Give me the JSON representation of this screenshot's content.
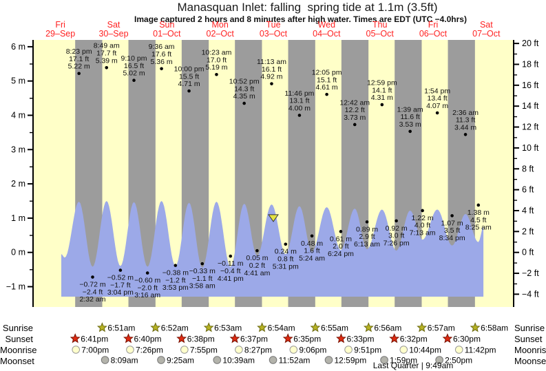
{
  "title": "Manasquan Inlet: falling  spring tide at 1.1m (3.5ft)",
  "subtitle": "Image captured 2 hours and 8 minutes after high water. Times are EDT (UTC −4.0hrs)",
  "days": [
    {
      "weekday": "Fri",
      "date": "29–Sep"
    },
    {
      "weekday": "Sat",
      "date": "30–Sep"
    },
    {
      "weekday": "Sun",
      "date": "01–Oct"
    },
    {
      "weekday": "Mon",
      "date": "02–Oct"
    },
    {
      "weekday": "Tue",
      "date": "03–Oct"
    },
    {
      "weekday": "Wed",
      "date": "04–Oct"
    },
    {
      "weekday": "Thu",
      "date": "05–Oct"
    },
    {
      "weekday": "Fri",
      "date": "06–Oct"
    },
    {
      "weekday": "Sat",
      "date": "07–Oct"
    }
  ],
  "chart_data": {
    "type": "area",
    "title": "Manasquan Inlet tide curve",
    "ylabel_left": "m",
    "ylabel_right": "ft",
    "y_axis_left": {
      "min": -1,
      "max": 6,
      "major_step": 1,
      "labels": [
        "6 m",
        "5 m",
        "4 m",
        "3 m",
        "2 m",
        "1 m",
        "0 m",
        "−1 m"
      ]
    },
    "y_axis_right": {
      "min": -4,
      "max": 20,
      "major_step": 2,
      "labels": [
        "20 ft",
        "18 ft",
        "16 ft",
        "14 ft",
        "12 ft",
        "10 ft",
        "8 ft",
        "6 ft",
        "4 ft",
        "2 ft",
        "0 ft",
        "−2 ft",
        "−4 ft"
      ]
    },
    "sun_cycle": {
      "sunrise_h": 6.88,
      "sunset_h": 18.68
    },
    "high_tides": [
      {
        "day": 0,
        "time": "8:23 pm",
        "height_ft": "17.1 ft",
        "height_m": "5.22 m",
        "value_m": 5.22
      },
      {
        "day": 1,
        "time": "8:49 am",
        "height_ft": "17.7 ft",
        "height_m": "5.39 m",
        "value_m": 5.39
      },
      {
        "day": 1,
        "time": "9:10 pm",
        "height_ft": "16.5 ft",
        "height_m": "5.02 m",
        "value_m": 5.02
      },
      {
        "day": 2,
        "time": "9:36 am",
        "height_ft": "17.6 ft",
        "height_m": "5.36 m",
        "value_m": 5.36
      },
      {
        "day": 2,
        "time": "10:00 pm",
        "height_ft": "15.5 ft",
        "height_m": "4.71 m",
        "value_m": 4.71
      },
      {
        "day": 3,
        "time": "10:23 am",
        "height_ft": "17.0 ft",
        "height_m": "5.19 m",
        "value_m": 5.19
      },
      {
        "day": 3,
        "time": "10:52 pm",
        "height_ft": "14.3 ft",
        "height_m": "4.35 m",
        "value_m": 4.35
      },
      {
        "day": 4,
        "time": "11:13 am",
        "height_ft": "16.1 ft",
        "height_m": "4.92 m",
        "value_m": 4.92
      },
      {
        "day": 4,
        "time": "11:46 pm",
        "height_ft": "13.1 ft",
        "height_m": "4.00 m",
        "value_m": 4.0
      },
      {
        "day": 5,
        "time": "12:05 pm",
        "height_ft": "15.1 ft",
        "height_m": "4.61 m",
        "value_m": 4.61
      },
      {
        "day": 6,
        "time": "12:42 am",
        "height_ft": "12.2 ft",
        "height_m": "3.73 m",
        "value_m": 3.73
      },
      {
        "day": 6,
        "time": "12:59 pm",
        "height_ft": "14.1 ft",
        "height_m": "4.31 m",
        "value_m": 4.31
      },
      {
        "day": 7,
        "time": "1:39 am",
        "height_ft": "11.6 ft",
        "height_m": "3.53 m",
        "value_m": 3.53
      },
      {
        "day": 7,
        "time": "1:54 pm",
        "height_ft": "13.4 ft",
        "height_m": "4.07 m",
        "value_m": 4.07
      },
      {
        "day": 8,
        "time": "2:36 am",
        "height_ft": "11.3 ft",
        "height_m": "3.44 m",
        "value_m": 3.44
      }
    ],
    "low_tides": [
      {
        "day": 1,
        "time": "2:32 am",
        "height_ft": "−2.4 ft",
        "height_m": "−0.72 m",
        "value_m": -0.72
      },
      {
        "day": 1,
        "time": "3:04 pm",
        "height_ft": "−1.7 ft",
        "height_m": "−0.52 m",
        "value_m": -0.52
      },
      {
        "day": 2,
        "time": "3:16 am",
        "height_ft": "−2.0 ft",
        "height_m": "−0.60 m",
        "value_m": -0.6
      },
      {
        "day": 2,
        "time": "3:53 pm",
        "height_ft": "−1.2 ft",
        "height_m": "−0.38 m",
        "value_m": -0.38
      },
      {
        "day": 3,
        "time": "3:58 am",
        "height_ft": "−1.1 ft",
        "height_m": "−0.33 m",
        "value_m": -0.33
      },
      {
        "day": 3,
        "time": "4:41 pm",
        "height_ft": "−0.4 ft",
        "height_m": "−0.11 m",
        "value_m": -0.11
      },
      {
        "day": 4,
        "time": "4:41 am",
        "height_ft": "0.2 ft",
        "height_m": "0.05 m",
        "value_m": 0.05
      },
      {
        "day": 4,
        "time": "5:31 pm",
        "height_ft": "0.8 ft",
        "height_m": "0.24 m",
        "value_m": 0.24
      },
      {
        "day": 5,
        "time": "5:24 am",
        "height_ft": "1.6 ft",
        "height_m": "0.48 m",
        "value_m": 0.48
      },
      {
        "day": 5,
        "time": "6:24 pm",
        "height_ft": "2.0 ft",
        "height_m": "0.61 m",
        "value_m": 0.61
      },
      {
        "day": 6,
        "time": "6:13 am",
        "height_ft": "2.9 ft",
        "height_m": "0.89 m",
        "value_m": 0.89
      },
      {
        "day": 6,
        "time": "7:26 pm",
        "height_ft": "3.0 ft",
        "height_m": "0.92 m",
        "value_m": 0.92
      },
      {
        "day": 7,
        "time": "7:13 am",
        "height_ft": "4.0 ft",
        "height_m": "1.22 m",
        "value_m": 1.22
      },
      {
        "day": 7,
        "time": "8:34 pm",
        "height_ft": "3.5 ft",
        "height_m": "1.07 m",
        "value_m": 1.07
      },
      {
        "day": 8,
        "time": "8:25 am",
        "height_ft": "4.5 ft",
        "height_m": "1.38 m",
        "value_m": 1.38
      }
    ],
    "current_marker": {
      "shape": "triangle-down",
      "x_hour": 108.0,
      "level_m": 1.0
    },
    "curve_profile": {
      "start_h": 12.4,
      "end_h": 202.7,
      "base_level_m": -1.3,
      "extremes": [
        [
          12.4,
          -0.05
        ],
        [
          13.97,
          -0.15
        ],
        [
          20.38,
          1.48
        ],
        [
          26.53,
          -0.42
        ],
        [
          32.82,
          1.5
        ],
        [
          39.07,
          -0.4
        ],
        [
          45.17,
          1.47
        ],
        [
          51.27,
          -0.42
        ],
        [
          57.6,
          1.5
        ],
        [
          63.88,
          -0.4
        ],
        [
          70.0,
          1.45
        ],
        [
          75.97,
          -0.45
        ],
        [
          82.38,
          1.48
        ],
        [
          88.68,
          -0.42
        ],
        [
          94.87,
          1.42
        ],
        [
          100.68,
          -0.1
        ],
        [
          107.22,
          1.4
        ],
        [
          113.52,
          -0.05
        ],
        [
          119.77,
          1.35
        ],
        [
          125.4,
          0.02
        ],
        [
          132.08,
          1.32
        ],
        [
          138.4,
          0.07
        ],
        [
          144.7,
          1.28
        ],
        [
          150.22,
          0.09
        ],
        [
          156.98,
          1.25
        ],
        [
          163.43,
          0.05
        ],
        [
          169.65,
          1.22
        ],
        [
          175.22,
          0.37
        ],
        [
          181.9,
          1.25
        ],
        [
          188.57,
          0.2
        ],
        [
          194.6,
          1.12
        ],
        [
          200.42,
          0.3
        ],
        [
          202.7,
          0.75
        ]
      ]
    }
  },
  "astro": {
    "rows": [
      {
        "label": "Sunrise",
        "icon": "sunrise-star-icon",
        "entries": [
          {
            "day": 1,
            "time": "6:51am"
          },
          {
            "day": 2,
            "time": "6:52am"
          },
          {
            "day": 3,
            "time": "6:53am"
          },
          {
            "day": 4,
            "time": "6:54am"
          },
          {
            "day": 5,
            "time": "6:55am"
          },
          {
            "day": 6,
            "time": "6:56am"
          },
          {
            "day": 7,
            "time": "6:57am"
          },
          {
            "day": 8,
            "time": "6:58am"
          }
        ]
      },
      {
        "label": "Sunset",
        "icon": "sunset-star-icon",
        "entries": [
          {
            "day": 0,
            "time": "6:41pm"
          },
          {
            "day": 1,
            "time": "6:40pm"
          },
          {
            "day": 2,
            "time": "6:38pm"
          },
          {
            "day": 3,
            "time": "6:37pm"
          },
          {
            "day": 4,
            "time": "6:35pm"
          },
          {
            "day": 5,
            "time": "6:33pm"
          },
          {
            "day": 6,
            "time": "6:32pm"
          },
          {
            "day": 7,
            "time": "6:30pm"
          }
        ]
      },
      {
        "label": "Moonrise",
        "icon": "moonrise-circle-icon",
        "entries": [
          {
            "day": 0,
            "time": "7:00pm"
          },
          {
            "day": 1,
            "time": "7:26pm"
          },
          {
            "day": 2,
            "time": "7:55pm"
          },
          {
            "day": 3,
            "time": "8:27pm"
          },
          {
            "day": 4,
            "time": "9:06pm"
          },
          {
            "day": 5,
            "time": "9:51pm"
          },
          {
            "day": 6,
            "time": "10:44pm"
          },
          {
            "day": 7,
            "time": "11:42pm"
          }
        ]
      },
      {
        "label": "Moonset",
        "icon": "moonset-circle-icon",
        "entries": [
          {
            "day": 1,
            "time": "8:09am"
          },
          {
            "day": 2,
            "time": "9:25am"
          },
          {
            "day": 3,
            "time": "10:39am"
          },
          {
            "day": 4,
            "time": "11:52am"
          },
          {
            "day": 5,
            "time": "12:59pm"
          },
          {
            "day": 6,
            "time": "1:59pm"
          },
          {
            "day": 7,
            "time": "2:50pm"
          }
        ]
      }
    ],
    "moon_phase": "Last Quarter | 9:49am"
  },
  "colors": {
    "day_band": "#ffffc8",
    "night_band": "#9c9c9c",
    "tide_fill": "#9ca9e8",
    "day_label_red": "#ff2222",
    "marker_yellow": "#e3e143",
    "sunrise_star": "#b6b224",
    "sunset_star": "#dd2a12",
    "moonrise_circle": "#ffffcc",
    "moonset_circle": "#b3b3ab",
    "axis_black": "#000000"
  }
}
